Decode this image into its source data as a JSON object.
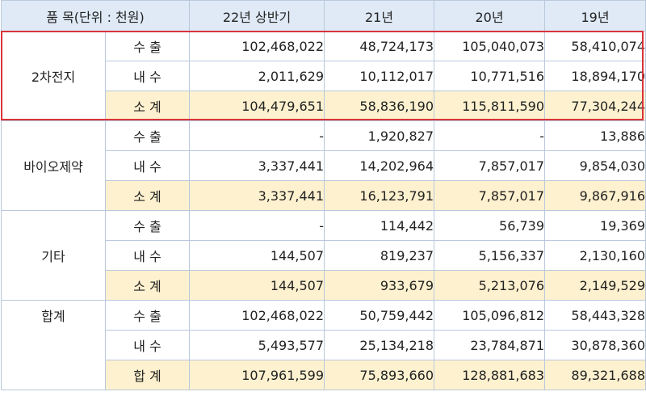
{
  "header": {
    "item": "품 목(단위 : 천원)",
    "col1": "22년 상반기",
    "col2": "21년",
    "col3": "20년",
    "col4": "19년"
  },
  "groups": [
    {
      "category": "2차전지",
      "rows": [
        {
          "label": "수 출",
          "values": [
            "102,468,022",
            "48,724,173",
            "105,040,073",
            "58,410,074"
          ]
        },
        {
          "label": "내 수",
          "values": [
            "2,011,629",
            "10,112,017",
            "10,771,516",
            "18,894,170"
          ]
        },
        {
          "label": "소 계",
          "values": [
            "104,479,651",
            "58,836,190",
            "115,811,590",
            "77,304,244"
          ]
        }
      ]
    },
    {
      "category": "바이오제약",
      "rows": [
        {
          "label": "수 출",
          "values": [
            "-",
            "1,920,827",
            "-",
            "13,886"
          ]
        },
        {
          "label": "내 수",
          "values": [
            "3,337,441",
            "14,202,964",
            "7,857,017",
            "9,854,030"
          ]
        },
        {
          "label": "소 계",
          "values": [
            "3,337,441",
            "16,123,791",
            "7,857,017",
            "9,867,916"
          ]
        }
      ]
    },
    {
      "category": "기타",
      "rows": [
        {
          "label": "수 출",
          "values": [
            "-",
            "114,442",
            "56,739",
            "19,369"
          ]
        },
        {
          "label": "내 수",
          "values": [
            "144,507",
            "819,237",
            "5,156,337",
            "2,130,160"
          ]
        },
        {
          "label": "소 계",
          "values": [
            "144,507",
            "933,679",
            "5,213,076",
            "2,149,529"
          ]
        }
      ]
    },
    {
      "category": "합계",
      "rows": [
        {
          "label": "수 출",
          "values": [
            "102,468,022",
            "50,759,442",
            "105,096,812",
            "58,443,328"
          ]
        },
        {
          "label": "내 수",
          "values": [
            "5,493,577",
            "25,134,218",
            "23,784,871",
            "30,878,360"
          ]
        },
        {
          "label": "합 계",
          "values": [
            "107,961,599",
            "75,893,660",
            "128,881,683",
            "89,321,688"
          ]
        }
      ]
    }
  ],
  "colors": {
    "header_bg": "#dfeaf6",
    "subtotal_bg": "#fdf1cf",
    "grid_line": "#b9c8dc",
    "highlight_border": "#d9343b"
  }
}
